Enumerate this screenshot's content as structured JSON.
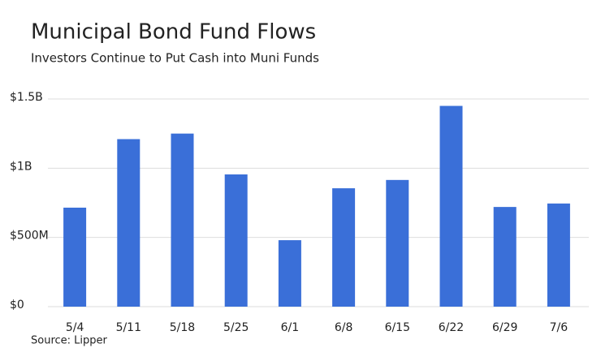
{
  "chart_data": {
    "type": "bar",
    "title": "Municipal Bond Fund Flows",
    "subtitle": "Investors Continue to Put Cash into Muni Funds",
    "source": "Source: Lipper",
    "categories": [
      "5/4",
      "5/11",
      "5/18",
      "5/25",
      "6/1",
      "6/8",
      "6/15",
      "6/22",
      "6/29",
      "7/6"
    ],
    "values": [
      715000000,
      1210000000,
      1250000000,
      955000000,
      480000000,
      855000000,
      915000000,
      1450000000,
      720000000,
      745000000
    ],
    "color": "#3a6fd8",
    "ylim": [
      0,
      1500000000
    ],
    "yticks": [
      {
        "value": 0,
        "label": "$0"
      },
      {
        "value": 500000000,
        "label": "$500M"
      },
      {
        "value": 1000000000,
        "label": "$1B"
      },
      {
        "value": 1500000000,
        "label": "$1.5B"
      }
    ],
    "grid": true
  }
}
